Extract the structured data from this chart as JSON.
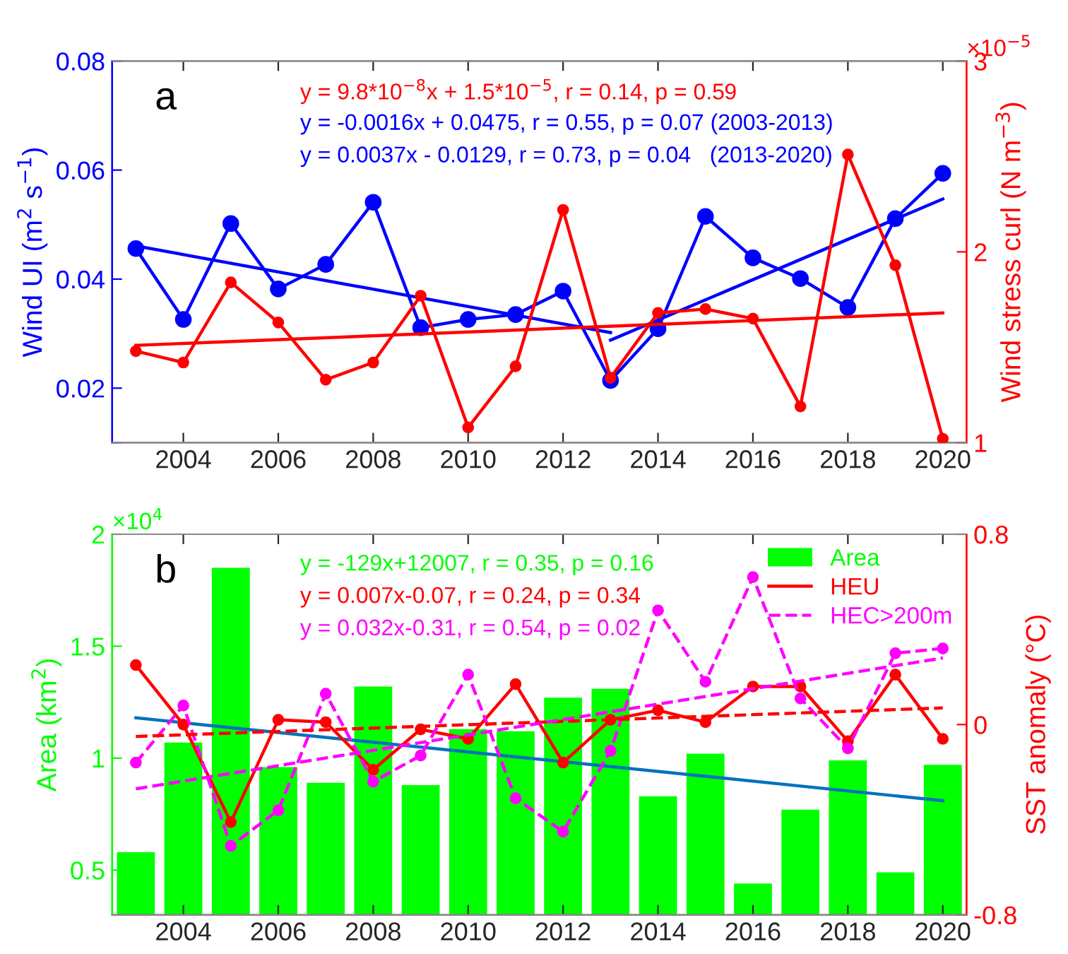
{
  "chart_data": [
    {
      "type": "line",
      "ylabel": "Wind UI (m$^{2}$ s$^{−1}$)",
      "y2label": "Wind stress curl (N m$^{−3}$)",
      "x": [
        2003,
        2004,
        2005,
        2006,
        2007,
        2008,
        2009,
        2010,
        2011,
        2012,
        2013,
        2014,
        2015,
        2016,
        2017,
        2018,
        2019,
        2020
      ],
      "xlim": [
        2002.5,
        2020.5
      ],
      "xticks": [
        2004,
        2006,
        2008,
        2010,
        2012,
        2014,
        2016,
        2018,
        2020
      ],
      "ylim": [
        0.01,
        0.08
      ],
      "yticks": [
        {
          "value": 0.01,
          "label": null
        },
        0.02,
        0.04,
        0.06,
        0.08
      ],
      "y2lim": [
        1,
        3
      ],
      "y2ticks": [
        1,
        2,
        3
      ],
      "grid": false,
      "legend": false,
      "annotations": [
        "a",
        "y = 9.8*10$^{−8}$x + 1.5*10$^{−5}$, r = 0.14, p = 0.59",
        "y = -0.0016x + 0.0475, r = 0.55, p = 0.07 (2003-2013)",
        "y = 0.0037x - 0.0129, r = 0.73, p = 0.04   (2013-2020)",
        "×10$^{−5}$"
      ],
      "series": [
        {
          "color": "#0000ff",
          "marker": "circle",
          "values": [
            0.0456,
            0.0326,
            0.0502,
            0.0382,
            0.0427,
            0.0541,
            0.0311,
            0.0326,
            0.0335,
            0.0378,
            0.0214,
            0.0309,
            0.0515,
            0.0439,
            0.0401,
            0.0348,
            0.0511,
            0.0594
          ]
        },
        {
          "color": "#ff0000",
          "marker": "circle",
          "axis": "y2",
          "values": [
            1.48,
            1.42,
            1.84,
            1.63,
            1.33,
            1.42,
            1.77,
            1.08,
            1.4,
            2.22,
            1.34,
            1.68,
            1.7,
            1.65,
            1.19,
            2.51,
            1.93,
            1.02
          ]
        },
        {
          "color": "#0000ff",
          "marker": "none",
          "x": [
            2003,
            2013
          ],
          "values": [
            0.0461,
            0.0302
          ]
        },
        {
          "color": "#0000ff",
          "marker": "none",
          "x": [
            2013,
            2020
          ],
          "values": [
            0.0288,
            0.0547
          ]
        },
        {
          "color": "#ff0000",
          "marker": "none",
          "axis": "y2",
          "x": [
            2003,
            2020
          ],
          "values": [
            1.51,
            1.68
          ]
        }
      ]
    },
    {
      "type": "bar",
      "ylabel": "Area (km$^{2}$)",
      "y2label": "SST anomaly (°C)",
      "x": [
        2003,
        2004,
        2005,
        2006,
        2007,
        2008,
        2009,
        2010,
        2011,
        2012,
        2013,
        2014,
        2015,
        2016,
        2017,
        2018,
        2019,
        2020
      ],
      "xlim": [
        2002.5,
        2020.5
      ],
      "xticks": [
        2004,
        2006,
        2008,
        2010,
        2012,
        2014,
        2016,
        2018,
        2020
      ],
      "ylim": [
        0.3,
        2
      ],
      "yticks": [
        0.5,
        1,
        1.5,
        2
      ],
      "y2lim": [
        -0.8,
        0.8
      ],
      "y2ticks": [
        -0.8,
        0,
        0.8
      ],
      "grid": false,
      "legend": "top right",
      "annotations": [
        "b",
        "y = -129x+12007, r = 0.35, p = 0.16",
        "y = 0.007x-0.07, r = 0.24, p = 0.34",
        "y = 0.032x-0.31, r = 0.54, p = 0.02",
        "×10$^{4}$"
      ],
      "series": [
        {
          "name": "Area",
          "color": "#00ff00",
          "values": [
            0.58,
            1.07,
            1.85,
            0.96,
            0.89,
            1.32,
            0.88,
            1.13,
            1.12,
            1.27,
            1.31,
            0.83,
            1.02,
            0.44,
            0.77,
            0.99,
            0.49,
            0.97
          ]
        },
        {
          "name": "HEU",
          "type": "line",
          "color": "#ff0000",
          "marker": "circle",
          "axis": "y2",
          "values": [
            0.25,
            0.0,
            -0.41,
            0.02,
            0.01,
            -0.19,
            -0.02,
            -0.06,
            0.17,
            -0.16,
            0.02,
            0.06,
            0.01,
            0.16,
            0.16,
            -0.07,
            0.21,
            -0.06
          ]
        },
        {
          "name": "HEC>200m",
          "type": "line",
          "color": "#ff00ff",
          "marker": "circle",
          "line_style": "dashed",
          "axis": "y2",
          "values": [
            -0.16,
            0.08,
            -0.51,
            -0.36,
            0.13,
            -0.24,
            -0.13,
            0.21,
            -0.31,
            -0.45,
            -0.11,
            0.48,
            0.18,
            0.62,
            0.11,
            -0.1,
            0.3,
            0.32
          ]
        },
        {
          "type": "line",
          "color": "#0072bd",
          "marker": "none",
          "x": [
            2003,
            2020
          ],
          "values": [
            1.18,
            0.81
          ]
        },
        {
          "type": "line",
          "color": "#ff0000",
          "marker": "none",
          "line_style": "dashed",
          "axis": "y2",
          "x": [
            2003,
            2020
          ],
          "values": [
            -0.05,
            0.07
          ]
        },
        {
          "type": "line",
          "color": "#ff00ff",
          "marker": "none",
          "line_style": "dashed",
          "axis": "y2",
          "x": [
            2003,
            2020
          ],
          "values": [
            -0.27,
            0.28
          ]
        }
      ]
    }
  ]
}
